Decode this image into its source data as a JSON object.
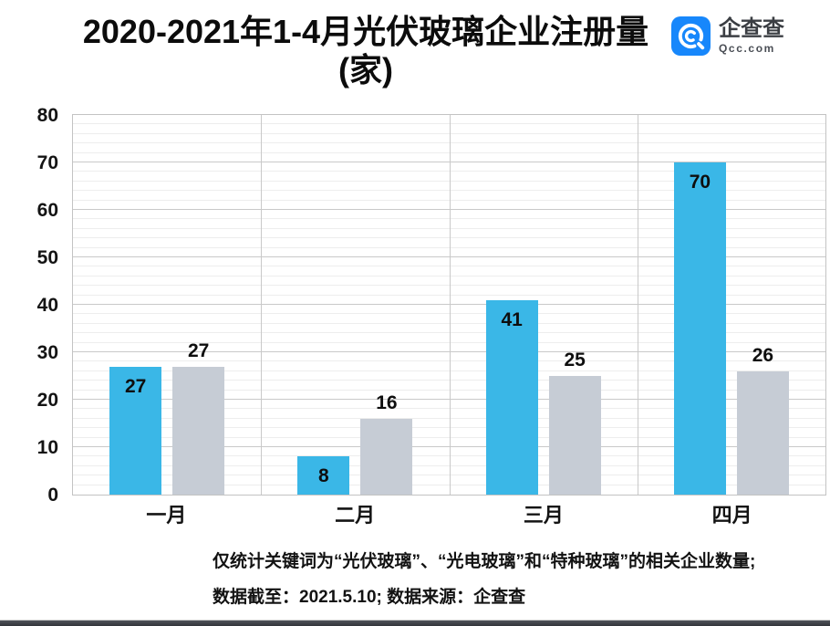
{
  "chart_data": {
    "type": "bar",
    "title": "2020-2021年1-4月光伏玻璃企业注册量",
    "title_unit": "(家)",
    "categories": [
      "一月",
      "二月",
      "三月",
      "四月"
    ],
    "series": [
      {
        "name": "series-blue",
        "color": "#3ab7e7",
        "values": [
          27,
          8,
          41,
          70
        ],
        "value_label_position": "inside-top"
      },
      {
        "name": "series-gray",
        "color": "#c6ccd5",
        "values": [
          27,
          16,
          25,
          26
        ],
        "value_label_position": "above"
      }
    ],
    "ylim": [
      0,
      80
    ],
    "y_major_step": 10,
    "y_minor_step": 2,
    "grid": {
      "horizontal_major": true,
      "horizontal_minor": true,
      "vertical_category_separators": true
    },
    "legend": "none",
    "xlabel": "",
    "ylabel": ""
  },
  "logo": {
    "name": "企查查",
    "domain": "Qcc.com",
    "brand_color": "#1787fb"
  },
  "footnote": {
    "line1": "仅统计关键词为“光伏玻璃”、“光电玻璃”和“特种玻璃”的相关企业数量;",
    "line2": "数据截至：2021.5.10; 数据来源：企查查"
  },
  "colors": {
    "bar_blue": "#3ab7e7",
    "bar_gray": "#c6ccd5",
    "grid_major": "#c9c9c9",
    "grid_minor": "#ededed",
    "text": "#111111",
    "logo_blue": "#1787fb"
  }
}
